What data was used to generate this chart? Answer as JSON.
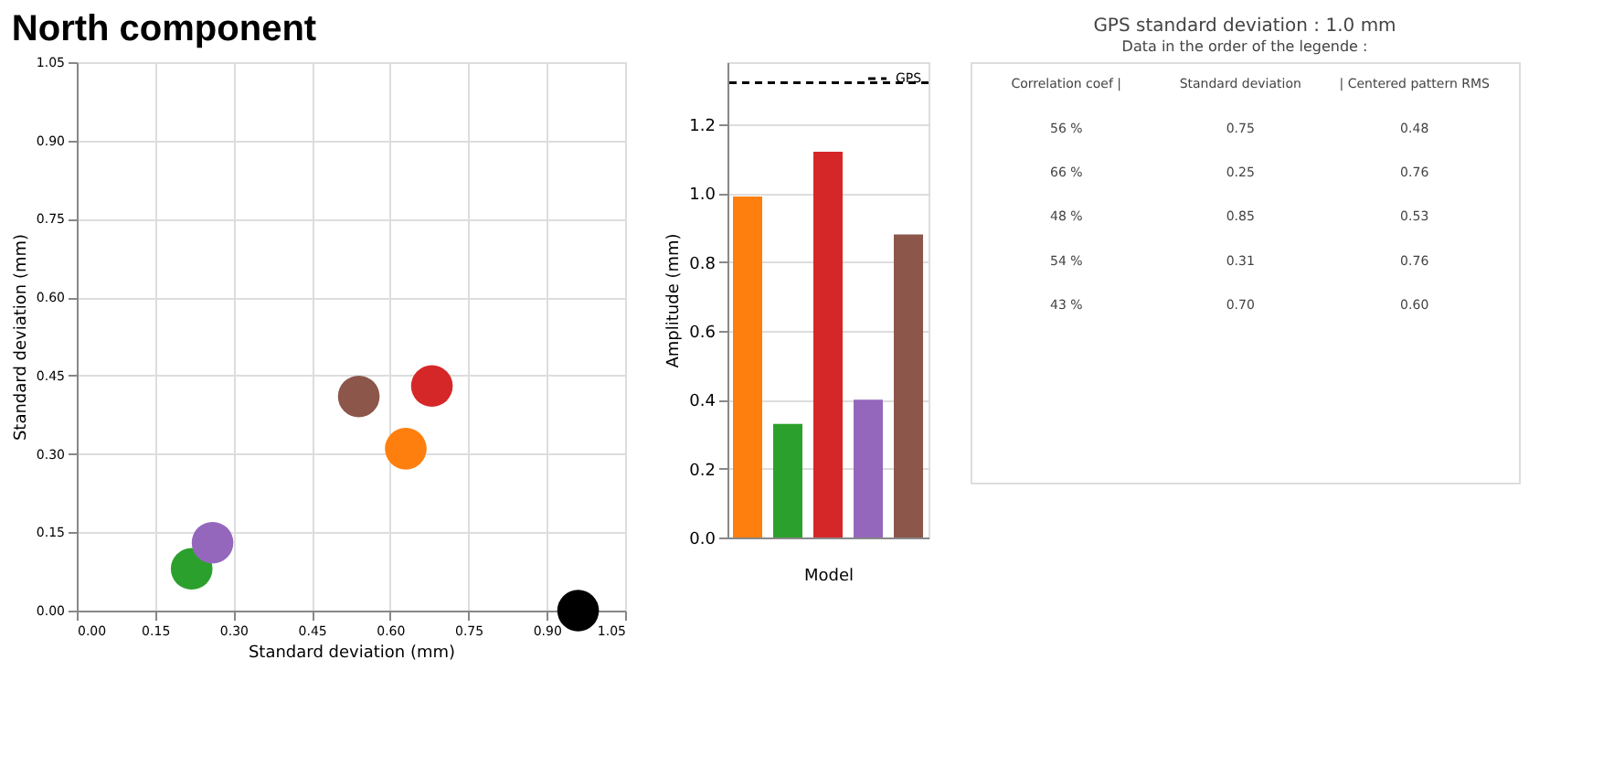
{
  "chart_data": [
    {
      "type": "scatter",
      "title": "North component",
      "xlabel": "Standard deviation (mm)",
      "ylabel": "Standard deviation (mm)",
      "xlim": [
        0,
        1.05
      ],
      "ylim": [
        0,
        1.05
      ],
      "xticks": [
        {
          "value": 0,
          "label": "0.00"
        },
        {
          "value": 0.15,
          "label": "0.15"
        },
        {
          "value": 0.3,
          "label": "0.30"
        },
        {
          "value": 0.45,
          "label": "0.45"
        },
        {
          "value": 0.6,
          "label": "0.60"
        },
        {
          "value": 0.75,
          "label": "0.75"
        },
        {
          "value": 0.9,
          "label": "0.90"
        },
        {
          "value": 1.05,
          "label": "1.05"
        }
      ],
      "yticks": [
        {
          "value": 0,
          "label": "0.00"
        },
        {
          "value": 0.15,
          "label": "0.15"
        },
        {
          "value": 0.3,
          "label": "0.30"
        },
        {
          "value": 0.45,
          "label": "0.45"
        },
        {
          "value": 0.6,
          "label": "0.60"
        },
        {
          "value": 0.75,
          "label": "0.75"
        },
        {
          "value": 0.9,
          "label": "0.90"
        },
        {
          "value": 1.05,
          "label": "1.05"
        }
      ],
      "grid": true,
      "marker": "circle",
      "series": [
        {
          "color": "#ff7f0e",
          "x": [
            0.63
          ],
          "values": [
            0.31
          ]
        },
        {
          "color": "#2ca02c",
          "x": [
            0.22
          ],
          "values": [
            0.08
          ]
        },
        {
          "color": "#d62728",
          "x": [
            0.68
          ],
          "values": [
            0.43
          ]
        },
        {
          "color": "#9467bd",
          "x": [
            0.26
          ],
          "values": [
            0.13
          ]
        },
        {
          "color": "#8c564b",
          "x": [
            0.54
          ],
          "values": [
            0.41
          ]
        },
        {
          "color": "#000000",
          "x": [
            0.96
          ],
          "values": [
            0.0
          ]
        }
      ]
    },
    {
      "type": "bar",
      "xlabel": "Model",
      "ylabel": "Amplitude (mm)",
      "categories": [
        null,
        null,
        null,
        null,
        null
      ],
      "values": [
        0.99,
        0.33,
        1.12,
        0.4,
        0.88
      ],
      "colors": [
        "#ff7f0e",
        "#2ca02c",
        "#d62728",
        "#9467bd",
        "#8c564b"
      ],
      "ylim": [
        0,
        1.38
      ],
      "yticks": [
        {
          "value": 0,
          "label": "0.0"
        },
        0.2,
        0.4,
        0.6,
        0.8,
        {
          "value": 1,
          "label": "1.0"
        },
        1.2
      ],
      "grid": "y",
      "legend": "top right",
      "ref_lines": [
        {
          "axis": "y",
          "value": 1.32,
          "label": "GPS",
          "color": "#000000",
          "line_style": "dashed"
        }
      ]
    },
    {
      "type": "other",
      "title": "GPS standard deviation : 1.0 mm",
      "subtitle": "Data in the order of the legende :",
      "annotations": [
        "Correlation coef |",
        "Standard deviation",
        "| Centered pattern RMS",
        "56 %",
        "0.75",
        "0.48",
        "66 %",
        "0.25",
        "0.76",
        "48 %",
        "0.85",
        "0.53",
        "54 %",
        "0.31",
        "0.76",
        "43 %",
        "0.70",
        "0.60"
      ]
    }
  ]
}
